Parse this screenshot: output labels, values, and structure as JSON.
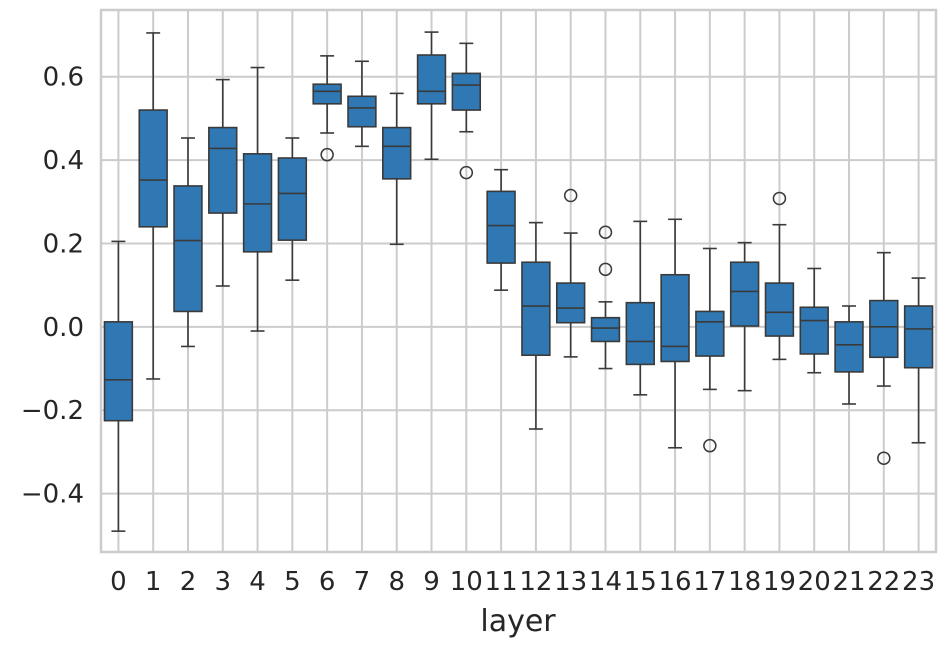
{
  "chart_data": {
    "type": "box",
    "xlabel": "layer",
    "ylabel": "",
    "ylim": [
      -0.54,
      0.76
    ],
    "yticks": [
      -0.4,
      -0.2,
      0.0,
      0.2,
      0.4,
      0.6
    ],
    "ytick_labels": [
      "−0.4",
      "−0.2",
      "0.0",
      "0.2",
      "0.4",
      "0.6"
    ],
    "grid": true,
    "box_color": "#2f78b4",
    "line_color": "#3a3a3a",
    "categories": [
      "0",
      "1",
      "2",
      "3",
      "4",
      "5",
      "6",
      "7",
      "8",
      "9",
      "10",
      "11",
      "12",
      "13",
      "14",
      "15",
      "16",
      "17",
      "18",
      "19",
      "20",
      "21",
      "22",
      "23"
    ],
    "boxes": [
      {
        "whislo": -0.49,
        "q1": -0.225,
        "med": -0.127,
        "q3": 0.012,
        "whishi": 0.205,
        "fliers": []
      },
      {
        "whislo": -0.125,
        "q1": 0.24,
        "med": 0.352,
        "q3": 0.52,
        "whishi": 0.705,
        "fliers": []
      },
      {
        "whislo": -0.047,
        "q1": 0.037,
        "med": 0.207,
        "q3": 0.338,
        "whishi": 0.453,
        "fliers": []
      },
      {
        "whislo": 0.098,
        "q1": 0.273,
        "med": 0.428,
        "q3": 0.478,
        "whishi": 0.593,
        "fliers": []
      },
      {
        "whislo": -0.01,
        "q1": 0.18,
        "med": 0.295,
        "q3": 0.415,
        "whishi": 0.622,
        "fliers": []
      },
      {
        "whislo": 0.112,
        "q1": 0.208,
        "med": 0.32,
        "q3": 0.405,
        "whishi": 0.453,
        "fliers": []
      },
      {
        "whislo": 0.465,
        "q1": 0.535,
        "med": 0.565,
        "q3": 0.582,
        "whishi": 0.65,
        "fliers": [
          0.413
        ]
      },
      {
        "whislo": 0.433,
        "q1": 0.48,
        "med": 0.525,
        "q3": 0.553,
        "whishi": 0.637,
        "fliers": []
      },
      {
        "whislo": 0.198,
        "q1": 0.355,
        "med": 0.433,
        "q3": 0.478,
        "whishi": 0.56,
        "fliers": []
      },
      {
        "whislo": 0.402,
        "q1": 0.535,
        "med": 0.565,
        "q3": 0.652,
        "whishi": 0.707,
        "fliers": []
      },
      {
        "whislo": 0.468,
        "q1": 0.52,
        "med": 0.58,
        "q3": 0.608,
        "whishi": 0.68,
        "fliers": [
          0.37
        ]
      },
      {
        "whislo": 0.088,
        "q1": 0.153,
        "med": 0.243,
        "q3": 0.325,
        "whishi": 0.377,
        "fliers": []
      },
      {
        "whislo": -0.245,
        "q1": -0.068,
        "med": 0.05,
        "q3": 0.155,
        "whishi": 0.25,
        "fliers": []
      },
      {
        "whislo": -0.072,
        "q1": 0.01,
        "med": 0.045,
        "q3": 0.105,
        "whishi": 0.225,
        "fliers": [
          0.315
        ]
      },
      {
        "whislo": -0.1,
        "q1": -0.035,
        "med": -0.003,
        "q3": 0.022,
        "whishi": 0.06,
        "fliers": [
          0.227,
          0.138
        ]
      },
      {
        "whislo": -0.163,
        "q1": -0.09,
        "med": -0.035,
        "q3": 0.058,
        "whishi": 0.253,
        "fliers": []
      },
      {
        "whislo": -0.29,
        "q1": -0.083,
        "med": -0.047,
        "q3": 0.125,
        "whishi": 0.258,
        "fliers": []
      },
      {
        "whislo": -0.15,
        "q1": -0.07,
        "med": 0.012,
        "q3": 0.037,
        "whishi": 0.188,
        "fliers": [
          -0.285
        ]
      },
      {
        "whislo": -0.153,
        "q1": 0.002,
        "med": 0.085,
        "q3": 0.155,
        "whishi": 0.202,
        "fliers": []
      },
      {
        "whislo": -0.078,
        "q1": -0.022,
        "med": 0.035,
        "q3": 0.105,
        "whishi": 0.245,
        "fliers": [
          0.308
        ]
      },
      {
        "whislo": -0.11,
        "q1": -0.065,
        "med": 0.015,
        "q3": 0.047,
        "whishi": 0.14,
        "fliers": []
      },
      {
        "whislo": -0.185,
        "q1": -0.108,
        "med": -0.043,
        "q3": 0.012,
        "whishi": 0.05,
        "fliers": []
      },
      {
        "whislo": -0.142,
        "q1": -0.073,
        "med": 0.0,
        "q3": 0.063,
        "whishi": 0.178,
        "fliers": [
          -0.315
        ]
      },
      {
        "whislo": -0.278,
        "q1": -0.098,
        "med": -0.005,
        "q3": 0.05,
        "whishi": 0.117,
        "fliers": []
      }
    ]
  }
}
